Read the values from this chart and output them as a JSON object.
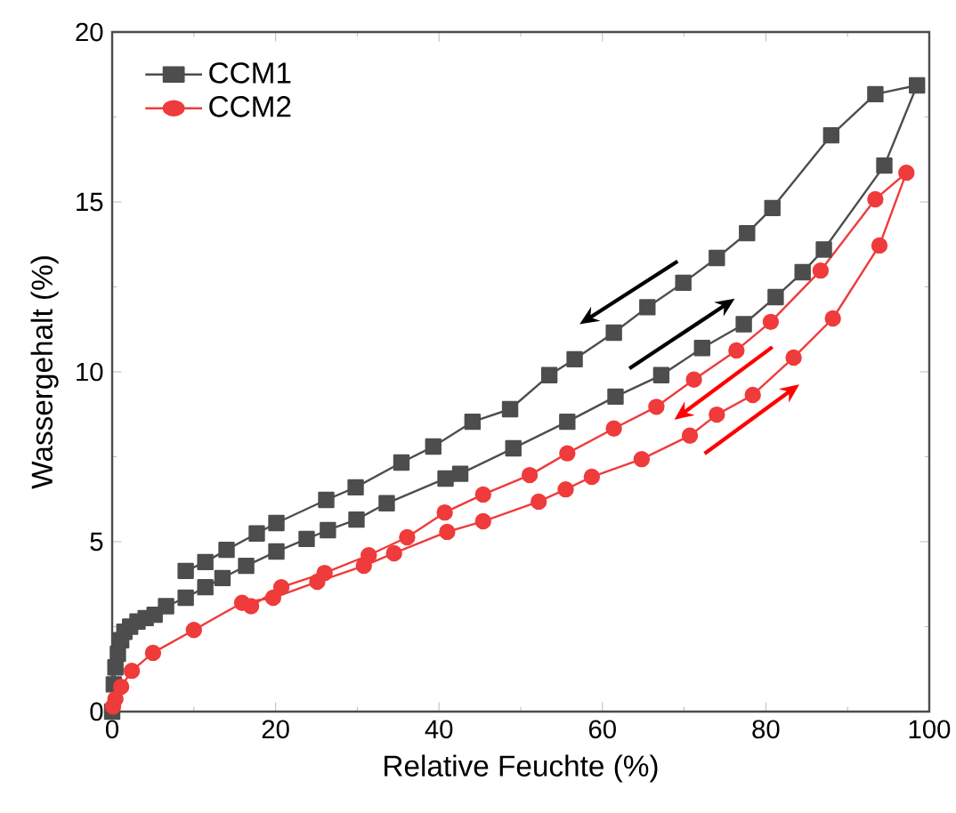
{
  "chart_data": {
    "type": "line",
    "xlabel": "Relative Feuchte (%)",
    "ylabel": "Wassergehalt (%)",
    "xlim": [
      0,
      100
    ],
    "ylim": [
      0,
      20
    ],
    "xticks": [
      0,
      20,
      40,
      60,
      80,
      100
    ],
    "yticks": [
      0,
      5,
      10,
      15,
      20
    ],
    "grid": false,
    "legend": "top left",
    "series": [
      {
        "name": "CCM1",
        "color": "#4d4d4d",
        "marker": "square",
        "x": [
          0,
          0.2,
          0.4,
          0.7,
          1.1,
          1.5,
          2.2,
          3.1,
          4.1,
          5.2,
          6.6,
          9.0,
          11.4,
          13.5,
          16.4,
          20.1,
          23.8,
          26.4,
          29.9,
          33.6,
          40.8,
          42.6,
          49.1,
          55.7,
          61.6,
          67.2,
          72.2,
          77.3,
          81.2,
          84.5,
          87.1,
          94.5,
          98.5,
          93.4,
          88.0,
          80.8,
          77.7,
          74.0,
          69.9,
          65.5,
          61.4,
          56.6,
          53.5,
          48.7,
          44.1,
          39.3,
          35.4,
          29.8,
          26.2,
          20.1,
          17.7,
          14.0,
          11.4,
          9.0
        ],
        "values": [
          0,
          0.8,
          1.3,
          1.7,
          2.1,
          2.35,
          2.5,
          2.65,
          2.75,
          2.85,
          3.1,
          3.35,
          3.66,
          3.93,
          4.29,
          4.71,
          5.08,
          5.34,
          5.65,
          6.13,
          6.86,
          7.0,
          7.75,
          8.53,
          9.27,
          9.9,
          10.7,
          11.4,
          12.2,
          12.93,
          13.6,
          16.07,
          18.43,
          18.17,
          16.96,
          14.82,
          14.08,
          13.35,
          12.62,
          11.9,
          11.15,
          10.37,
          9.9,
          8.9,
          8.53,
          7.8,
          7.33,
          6.6,
          6.23,
          5.55,
          5.24,
          4.76,
          4.4,
          4.14
        ]
      },
      {
        "name": "CCM2",
        "color": "#ef3b3b",
        "marker": "circle",
        "x": [
          0.1,
          0.4,
          1.1,
          2.4,
          5.0,
          10.0,
          15.9,
          19.7,
          25.1,
          30.8,
          34.5,
          41.0,
          45.4,
          52.2,
          55.5,
          58.7,
          64.8,
          70.7,
          74.0,
          78.4,
          83.4,
          88.2,
          93.9,
          97.2,
          93.4,
          86.7,
          80.6,
          76.4,
          71.2,
          66.6,
          61.4,
          55.7,
          51.1,
          45.4,
          40.7,
          36.1,
          31.4,
          26.0,
          20.7,
          17.0
        ],
        "values": [
          0.15,
          0.37,
          0.73,
          1.2,
          1.73,
          2.4,
          3.2,
          3.35,
          3.82,
          4.29,
          4.66,
          5.29,
          5.6,
          6.18,
          6.54,
          6.91,
          7.43,
          8.12,
          8.74,
          9.32,
          10.42,
          11.57,
          13.72,
          15.86,
          15.08,
          12.98,
          11.47,
          10.63,
          9.77,
          8.97,
          8.33,
          7.6,
          6.96,
          6.39,
          5.86,
          5.13,
          4.6,
          4.08,
          3.66,
          3.1
        ]
      }
    ]
  }
}
